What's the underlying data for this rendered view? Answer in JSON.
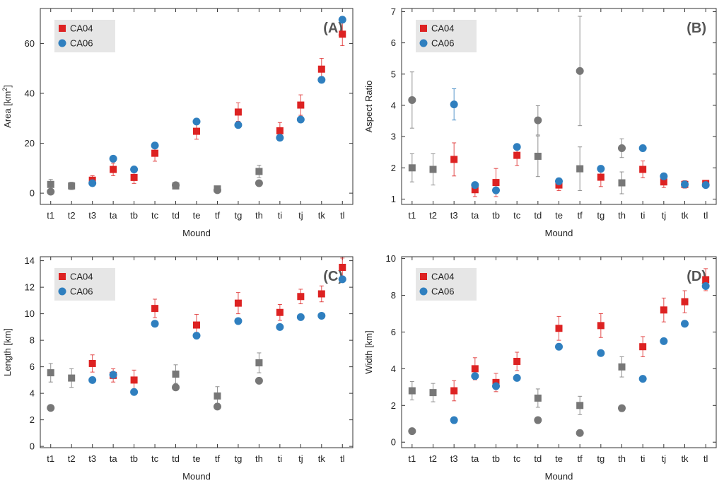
{
  "figure": {
    "categories": [
      "t1",
      "t2",
      "t3",
      "ta",
      "tb",
      "tc",
      "td",
      "te",
      "tf",
      "tg",
      "th",
      "ti",
      "tj",
      "tk",
      "tl"
    ],
    "xlabel": "Mound",
    "legend": [
      "CA04",
      "CA06"
    ],
    "colors": {
      "CA04": "#dd2222",
      "CA06": "#2f7fbf",
      "uncertain": "#777777"
    },
    "legend_position": "top-left",
    "grid": false
  },
  "chart_data": [
    {
      "type": "scatter",
      "panel_label": "(A)",
      "ylabel": "Area [km",
      "ylabel_sup": "2",
      "ylabel_end": "]",
      "ylim": [
        -4.5,
        74
      ],
      "yticks": [
        0,
        20,
        40,
        60
      ],
      "series": [
        {
          "name": "CA04",
          "marker": "square",
          "values": [
            3.5,
            2.9,
            5.2,
            9.5,
            6.3,
            16.0,
            2.9,
            24.8,
            1.7,
            32.5,
            8.7,
            25.0,
            35.3,
            49.7,
            63.7
          ],
          "errors": [
            2,
            1.5,
            1.8,
            2.5,
            2.4,
            3.2,
            1.2,
            3.2,
            1.0,
            3.7,
            2.5,
            3.3,
            4.1,
            4.3,
            4.6
          ],
          "status": [
            "u",
            "u",
            "c",
            "c",
            "c",
            "c",
            "u",
            "c",
            "u",
            "c",
            "u",
            "c",
            "c",
            "c",
            "c"
          ]
        },
        {
          "name": "CA06",
          "marker": "circle",
          "values": [
            0.6,
            null,
            4.0,
            13.8,
            9.5,
            19.1,
            3.2,
            28.7,
            1.2,
            27.3,
            4.0,
            22.2,
            29.5,
            45.4,
            69.5
          ],
          "errors": [
            0.3,
            null,
            0.6,
            0.7,
            0.6,
            0.8,
            0.4,
            0.9,
            0.3,
            0.9,
            0.5,
            0.8,
            0.9,
            1.0,
            1.2
          ],
          "status": [
            "u",
            "u",
            "c",
            "c",
            "c",
            "c",
            "u",
            "c",
            "u",
            "c",
            "u",
            "c",
            "c",
            "c",
            "c"
          ]
        }
      ]
    },
    {
      "type": "scatter",
      "panel_label": "(B)",
      "ylabel": "Aspect Ratio",
      "ylim": [
        0.83,
        7.1
      ],
      "yticks": [
        1,
        2,
        3,
        4,
        5,
        6,
        7
      ],
      "series": [
        {
          "name": "CA04",
          "marker": "square",
          "values": [
            2.0,
            1.95,
            2.27,
            1.3,
            1.53,
            2.4,
            2.37,
            1.45,
            1.97,
            1.7,
            1.52,
            1.95,
            1.55,
            1.47,
            1.5
          ],
          "errors": [
            0.45,
            0.5,
            0.53,
            0.22,
            0.45,
            0.33,
            0.65,
            0.18,
            0.7,
            0.3,
            0.35,
            0.27,
            0.18,
            0.12,
            0.1
          ],
          "status": [
            "u",
            "u",
            "c",
            "c",
            "c",
            "c",
            "u",
            "c",
            "u",
            "c",
            "u",
            "c",
            "c",
            "c",
            "c"
          ]
        },
        {
          "name": "CA06",
          "marker": "circle",
          "values": [
            4.17,
            null,
            4.03,
            1.45,
            1.28,
            2.67,
            3.52,
            1.57,
            5.1,
            1.97,
            2.63,
            2.63,
            1.73,
            1.47,
            1.45
          ],
          "errors": [
            0.9,
            null,
            0.5,
            0.06,
            0.04,
            0.08,
            0.47,
            0.07,
            1.75,
            0.1,
            0.3,
            0.1,
            0.04,
            0.04,
            0.04
          ],
          "status": [
            "u",
            "u",
            "c",
            "c",
            "c",
            "c",
            "u",
            "c",
            "u",
            "c",
            "u",
            "c",
            "c",
            "c",
            "c"
          ]
        }
      ]
    },
    {
      "type": "scatter",
      "panel_label": "(C)",
      "ylabel": "Length [km]",
      "ylim": [
        -0.1,
        14.3
      ],
      "yticks": [
        0,
        2,
        4,
        6,
        8,
        10,
        12,
        14
      ],
      "series": [
        {
          "name": "CA04",
          "marker": "square",
          "values": [
            5.55,
            5.15,
            6.25,
            5.35,
            5.0,
            10.4,
            5.45,
            9.15,
            3.8,
            10.8,
            6.3,
            10.1,
            11.3,
            11.5,
            13.5
          ],
          "errors": [
            0.7,
            0.7,
            0.65,
            0.5,
            0.75,
            0.7,
            0.7,
            0.8,
            0.7,
            0.8,
            0.75,
            0.6,
            0.55,
            0.6,
            0.7
          ],
          "status": [
            "u",
            "u",
            "c",
            "c",
            "c",
            "c",
            "u",
            "c",
            "u",
            "c",
            "u",
            "c",
            "c",
            "c",
            "c"
          ]
        },
        {
          "name": "CA06",
          "marker": "circle",
          "values": [
            2.9,
            null,
            5.0,
            5.4,
            4.1,
            9.25,
            4.45,
            8.35,
            3.0,
            9.45,
            4.95,
            9.0,
            9.75,
            9.85,
            12.6
          ],
          "errors": [
            0.1,
            null,
            0.1,
            0.1,
            0.1,
            0.12,
            0.1,
            0.12,
            0.1,
            0.12,
            0.1,
            0.12,
            0.12,
            0.12,
            0.15
          ],
          "status": [
            "u",
            "u",
            "c",
            "c",
            "c",
            "c",
            "u",
            "c",
            "u",
            "c",
            "u",
            "c",
            "c",
            "c",
            "c"
          ]
        }
      ]
    },
    {
      "type": "scatter",
      "panel_label": "(D)",
      "ylabel": "Width [km]",
      "ylim": [
        -0.3,
        10.1
      ],
      "yticks": [
        0,
        2,
        4,
        6,
        8,
        10
      ],
      "series": [
        {
          "name": "CA04",
          "marker": "square",
          "values": [
            2.8,
            2.7,
            2.8,
            4.0,
            3.25,
            4.4,
            2.4,
            6.2,
            2.0,
            6.35,
            4.1,
            5.2,
            7.2,
            7.65,
            8.85
          ],
          "errors": [
            0.5,
            0.5,
            0.55,
            0.6,
            0.5,
            0.5,
            0.5,
            0.65,
            0.5,
            0.65,
            0.55,
            0.55,
            0.65,
            0.6,
            0.6
          ],
          "status": [
            "u",
            "u",
            "c",
            "c",
            "c",
            "c",
            "u",
            "c",
            "u",
            "c",
            "u",
            "c",
            "c",
            "c",
            "c"
          ]
        },
        {
          "name": "CA06",
          "marker": "circle",
          "values": [
            0.6,
            null,
            1.2,
            3.6,
            3.05,
            3.5,
            1.2,
            5.2,
            0.5,
            4.85,
            1.85,
            3.45,
            5.5,
            6.45,
            8.5
          ],
          "errors": [
            0.05,
            null,
            0.07,
            0.1,
            0.1,
            0.1,
            0.08,
            0.12,
            0.15,
            0.12,
            0.1,
            0.1,
            0.12,
            0.12,
            0.12
          ],
          "status": [
            "u",
            "u",
            "c",
            "c",
            "c",
            "c",
            "u",
            "c",
            "u",
            "c",
            "u",
            "c",
            "c",
            "c",
            "c"
          ]
        }
      ]
    }
  ]
}
